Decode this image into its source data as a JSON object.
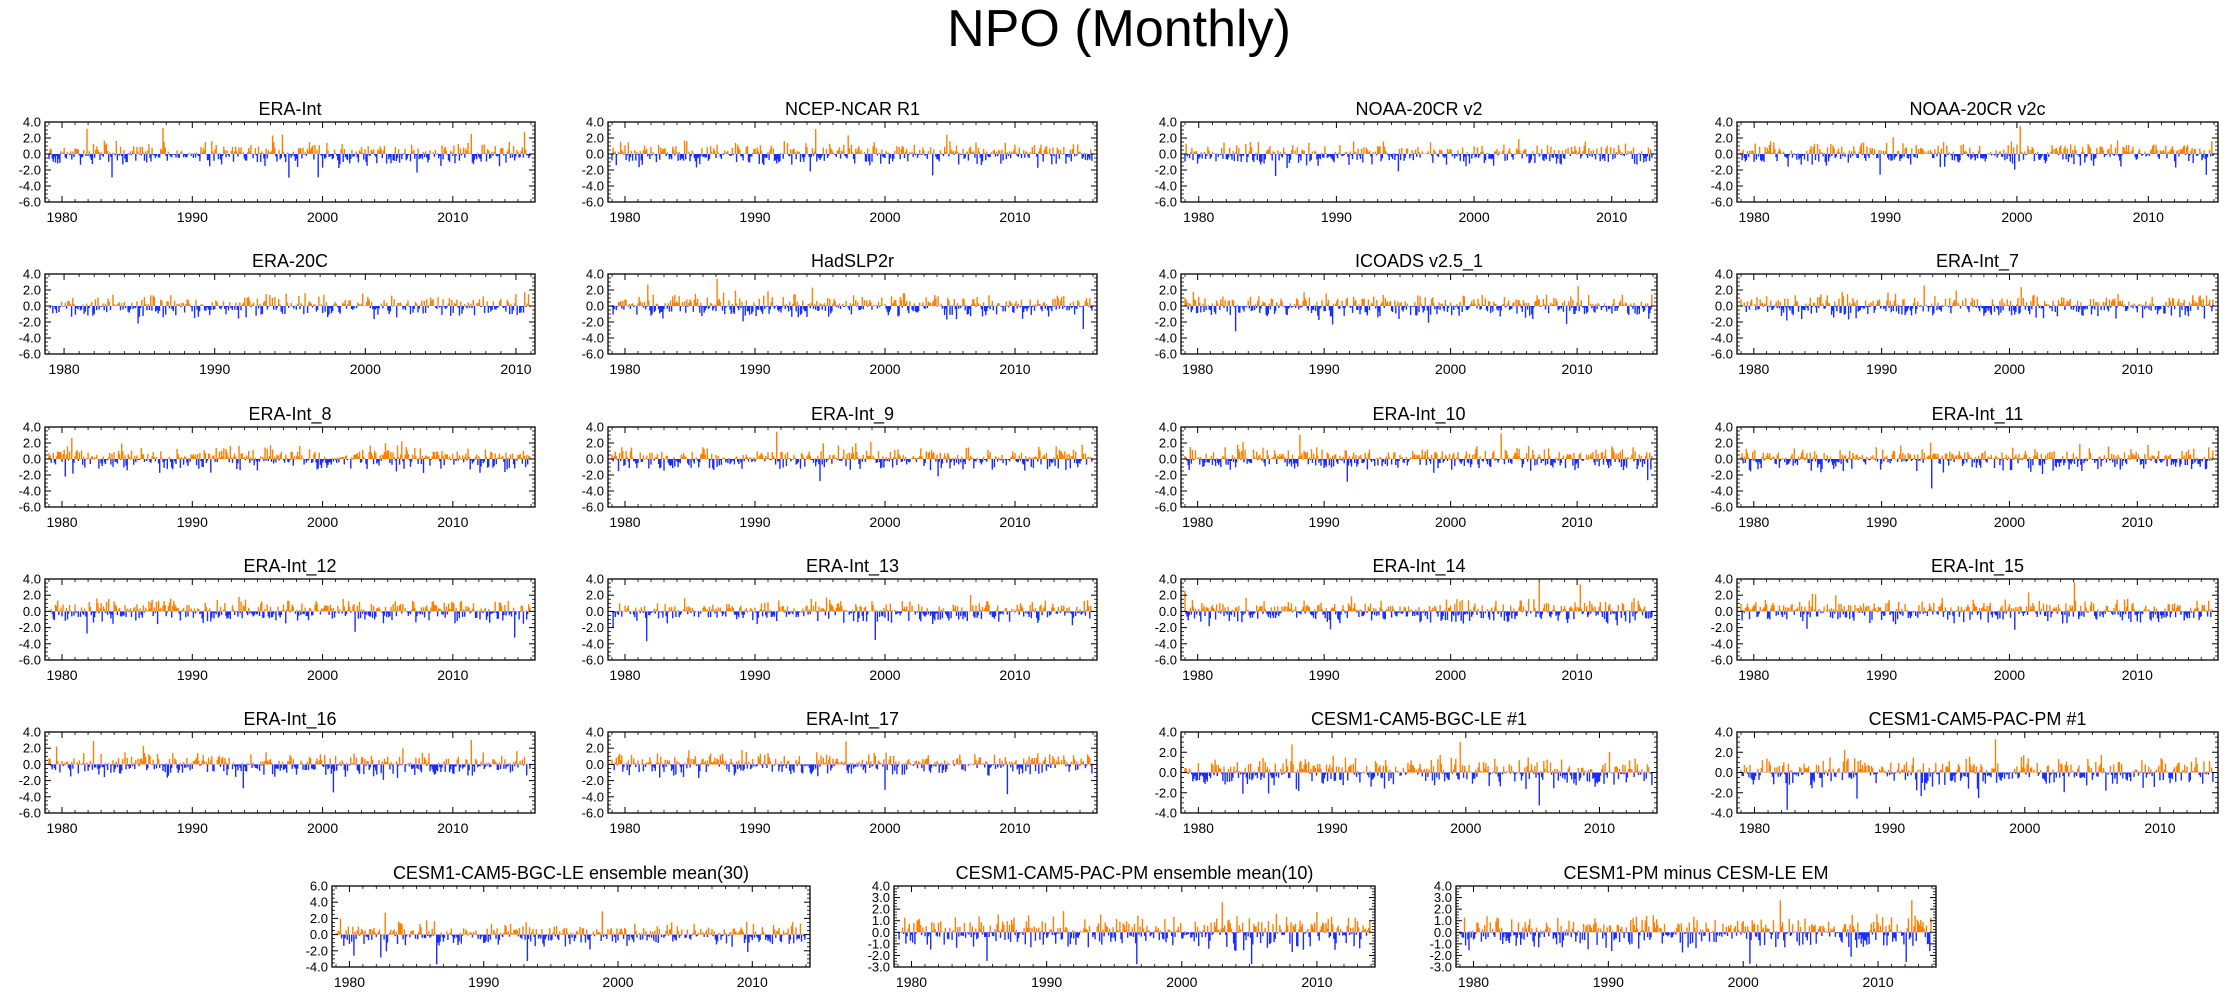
{
  "title": "NPO (Monthly)",
  "colors": {
    "positive": "#ff8000",
    "negative": "#1a2cff",
    "axis": "#000000"
  },
  "chart_data": [
    {
      "type": "bar",
      "title": "ERA-Int",
      "x_start": 1979,
      "x_end": 2016,
      "ylim": [
        -6,
        4
      ],
      "yticks": [
        "4.0",
        "2.0",
        "0.0",
        "-2.0",
        "-4.0",
        "-6.0"
      ],
      "xticks": [
        "1980",
        "1990",
        "2000",
        "2010"
      ],
      "seed": 11
    },
    {
      "type": "bar",
      "title": "NCEP-NCAR R1",
      "x_start": 1979,
      "x_end": 2016,
      "ylim": [
        -6,
        4
      ],
      "yticks": [
        "4.0",
        "2.0",
        "0.0",
        "-2.0",
        "-4.0",
        "-6.0"
      ],
      "xticks": [
        "1980",
        "1990",
        "2000",
        "2010"
      ],
      "seed": 12
    },
    {
      "type": "bar",
      "title": "NOAA-20CR v2",
      "x_start": 1979,
      "x_end": 2013,
      "ylim": [
        -6,
        4
      ],
      "yticks": [
        "4.0",
        "2.0",
        "0.0",
        "-2.0",
        "-4.0",
        "-6.0"
      ],
      "xticks": [
        "1980",
        "1990",
        "2000",
        "2010"
      ],
      "seed": 13
    },
    {
      "type": "bar",
      "title": "NOAA-20CR v2c",
      "x_start": 1979,
      "x_end": 2015,
      "ylim": [
        -6,
        4
      ],
      "yticks": [
        "4.0",
        "2.0",
        "0.0",
        "-2.0",
        "-4.0",
        "-6.0"
      ],
      "xticks": [
        "1980",
        "1990",
        "2000",
        "2010"
      ],
      "seed": 14
    },
    {
      "type": "bar",
      "title": "ERA-20C",
      "x_start": 1979,
      "x_end": 2011,
      "ylim": [
        -6,
        4
      ],
      "yticks": [
        "4.0",
        "2.0",
        "0.0",
        "-2.0",
        "-4.0",
        "-6.0"
      ],
      "xticks": [
        "1980",
        "1990",
        "2000",
        "2010"
      ],
      "seed": 15
    },
    {
      "type": "bar",
      "title": "HadSLP2r",
      "x_start": 1979,
      "x_end": 2016,
      "ylim": [
        -6,
        4
      ],
      "yticks": [
        "4.0",
        "2.0",
        "0.0",
        "-2.0",
        "-4.0",
        "-6.0"
      ],
      "xticks": [
        "1980",
        "1990",
        "2000",
        "2010"
      ],
      "seed": 16
    },
    {
      "type": "bar",
      "title": "ICOADS v2.5_1",
      "x_start": 1979,
      "x_end": 2016,
      "ylim": [
        -6,
        4
      ],
      "yticks": [
        "4.0",
        "2.0",
        "0.0",
        "-2.0",
        "-4.0",
        "-6.0"
      ],
      "xticks": [
        "1980",
        "1990",
        "2000",
        "2010"
      ],
      "seed": 17
    },
    {
      "type": "bar",
      "title": "ERA-Int_7",
      "x_start": 1979,
      "x_end": 2016,
      "ylim": [
        -6,
        4
      ],
      "yticks": [
        "4.0",
        "2.0",
        "0.0",
        "-2.0",
        "-4.0",
        "-6.0"
      ],
      "xticks": [
        "1980",
        "1990",
        "2000",
        "2010"
      ],
      "seed": 18
    },
    {
      "type": "bar",
      "title": "ERA-Int_8",
      "x_start": 1979,
      "x_end": 2016,
      "ylim": [
        -6,
        4
      ],
      "yticks": [
        "4.0",
        "2.0",
        "0.0",
        "-2.0",
        "-4.0",
        "-6.0"
      ],
      "xticks": [
        "1980",
        "1990",
        "2000",
        "2010"
      ],
      "seed": 19
    },
    {
      "type": "bar",
      "title": "ERA-Int_9",
      "x_start": 1979,
      "x_end": 2016,
      "ylim": [
        -6,
        4
      ],
      "yticks": [
        "4.0",
        "2.0",
        "0.0",
        "-2.0",
        "-4.0",
        "-6.0"
      ],
      "xticks": [
        "1980",
        "1990",
        "2000",
        "2010"
      ],
      "seed": 20
    },
    {
      "type": "bar",
      "title": "ERA-Int_10",
      "x_start": 1979,
      "x_end": 2016,
      "ylim": [
        -6,
        4
      ],
      "yticks": [
        "4.0",
        "2.0",
        "0.0",
        "-2.0",
        "-4.0",
        "-6.0"
      ],
      "xticks": [
        "1980",
        "1990",
        "2000",
        "2010"
      ],
      "seed": 21
    },
    {
      "type": "bar",
      "title": "ERA-Int_11",
      "x_start": 1979,
      "x_end": 2016,
      "ylim": [
        -6,
        4
      ],
      "yticks": [
        "4.0",
        "2.0",
        "0.0",
        "-2.0",
        "-4.0",
        "-6.0"
      ],
      "xticks": [
        "1980",
        "1990",
        "2000",
        "2010"
      ],
      "seed": 22
    },
    {
      "type": "bar",
      "title": "ERA-Int_12",
      "x_start": 1979,
      "x_end": 2016,
      "ylim": [
        -6,
        4
      ],
      "yticks": [
        "4.0",
        "2.0",
        "0.0",
        "-2.0",
        "-4.0",
        "-6.0"
      ],
      "xticks": [
        "1980",
        "1990",
        "2000",
        "2010"
      ],
      "seed": 23
    },
    {
      "type": "bar",
      "title": "ERA-Int_13",
      "x_start": 1979,
      "x_end": 2016,
      "ylim": [
        -6,
        4
      ],
      "yticks": [
        "4.0",
        "2.0",
        "0.0",
        "-2.0",
        "-4.0",
        "-6.0"
      ],
      "xticks": [
        "1980",
        "1990",
        "2000",
        "2010"
      ],
      "seed": 24
    },
    {
      "type": "bar",
      "title": "ERA-Int_14",
      "x_start": 1979,
      "x_end": 2016,
      "ylim": [
        -6,
        4
      ],
      "yticks": [
        "4.0",
        "2.0",
        "0.0",
        "-2.0",
        "-4.0",
        "-6.0"
      ],
      "xticks": [
        "1980",
        "1990",
        "2000",
        "2010"
      ],
      "seed": 25
    },
    {
      "type": "bar",
      "title": "ERA-Int_15",
      "x_start": 1979,
      "x_end": 2016,
      "ylim": [
        -6,
        4
      ],
      "yticks": [
        "4.0",
        "2.0",
        "0.0",
        "-2.0",
        "-4.0",
        "-6.0"
      ],
      "xticks": [
        "1980",
        "1990",
        "2000",
        "2010"
      ],
      "seed": 26
    },
    {
      "type": "bar",
      "title": "ERA-Int_16",
      "x_start": 1979,
      "x_end": 2016,
      "ylim": [
        -6,
        4
      ],
      "yticks": [
        "4.0",
        "2.0",
        "0.0",
        "-2.0",
        "-4.0",
        "-6.0"
      ],
      "xticks": [
        "1980",
        "1990",
        "2000",
        "2010"
      ],
      "seed": 27
    },
    {
      "type": "bar",
      "title": "ERA-Int_17",
      "x_start": 1979,
      "x_end": 2016,
      "ylim": [
        -6,
        4
      ],
      "yticks": [
        "4.0",
        "2.0",
        "0.0",
        "-2.0",
        "-4.0",
        "-6.0"
      ],
      "xticks": [
        "1980",
        "1990",
        "2000",
        "2010"
      ],
      "seed": 28
    },
    {
      "type": "bar",
      "title": "CESM1-CAM5-BGC-LE #1",
      "x_start": 1979,
      "x_end": 2014,
      "ylim": [
        -4,
        4
      ],
      "yticks": [
        "4.0",
        "2.0",
        "0.0",
        "-2.0",
        "-4.0"
      ],
      "xticks": [
        "1980",
        "1990",
        "2000",
        "2010"
      ],
      "seed": 29
    },
    {
      "type": "bar",
      "title": "CESM1-CAM5-PAC-PM #1",
      "x_start": 1979,
      "x_end": 2014,
      "ylim": [
        -4,
        4
      ],
      "yticks": [
        "4.0",
        "2.0",
        "0.0",
        "-2.0",
        "-4.0"
      ],
      "xticks": [
        "1980",
        "1990",
        "2000",
        "2010"
      ],
      "seed": 30
    },
    {
      "type": "bar",
      "title": "CESM1-CAM5-BGC-LE ensemble mean(30)",
      "x_start": 1979,
      "x_end": 2014,
      "ylim": [
        -4,
        6
      ],
      "yticks": [
        "6.0",
        "4.0",
        "2.0",
        "0.0",
        "-2.0",
        "-4.0"
      ],
      "xticks": [
        "1980",
        "1990",
        "2000",
        "2010"
      ],
      "seed": 31
    },
    {
      "type": "bar",
      "title": "CESM1-CAM5-PAC-PM ensemble mean(10)",
      "x_start": 1979,
      "x_end": 2014,
      "ylim": [
        -3,
        4
      ],
      "yticks": [
        "4.0",
        "3.0",
        "2.0",
        "1.0",
        "0.0",
        "-1.0",
        "-2.0",
        "-3.0"
      ],
      "xticks": [
        "1980",
        "1990",
        "2000",
        "2010"
      ],
      "seed": 32
    },
    {
      "type": "bar",
      "title": "CESM1-PM minus CESM-LE EM",
      "x_start": 1979,
      "x_end": 2014,
      "ylim": [
        -3,
        4
      ],
      "yticks": [
        "4.0",
        "3.0",
        "2.0",
        "1.0",
        "0.0",
        "-1.0",
        "-2.0",
        "-3.0"
      ],
      "xticks": [
        "1980",
        "1990",
        "2000",
        "2010"
      ],
      "seed": 33
    }
  ]
}
